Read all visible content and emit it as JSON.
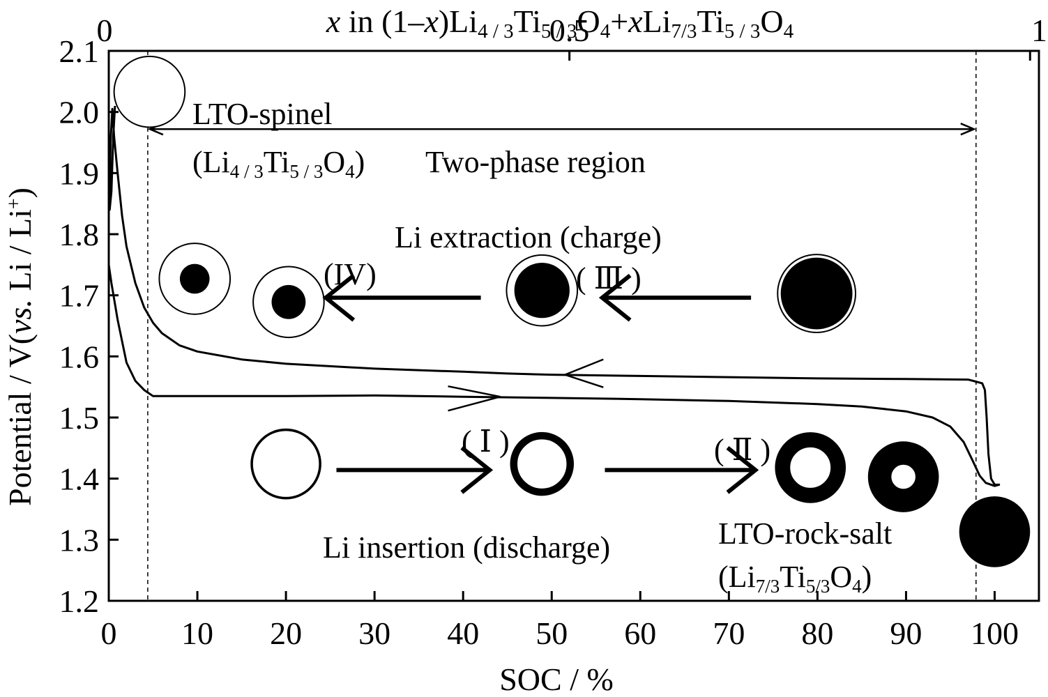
{
  "chart_data": {
    "type": "line",
    "xlabel": "SOC / %",
    "ylabel": "Potential / V(vs. Li / Li⁺)",
    "ylabel_parts": [
      "Potential / V(",
      "vs.",
      " Li / Li",
      "+",
      ")"
    ],
    "top_axis_title": {
      "parts": [
        {
          "t": "x",
          "style": "italic"
        },
        {
          "t": " in (1–",
          "style": "normal"
        },
        {
          "t": "x",
          "style": "italic"
        },
        {
          "t": ")Li",
          "style": "normal"
        },
        {
          "t": "4 / 3",
          "style": "sub"
        },
        {
          "t": "Ti",
          "style": "normal"
        },
        {
          "t": "5 / 3",
          "style": "sub"
        },
        {
          "t": "O",
          "style": "normal"
        },
        {
          "t": "4",
          "style": "sub"
        },
        {
          "t": "+",
          "style": "normal"
        },
        {
          "t": "x",
          "style": "italic"
        },
        {
          "t": "Li",
          "style": "normal"
        },
        {
          "t": "7/3",
          "style": "sub"
        },
        {
          "t": "Ti",
          "style": "normal"
        },
        {
          "t": "5 / 3",
          "style": "sub"
        },
        {
          "t": "O",
          "style": "normal"
        },
        {
          "t": "4",
          "style": "sub"
        }
      ]
    },
    "xlim": [
      0,
      105
    ],
    "ylim": [
      1.2,
      2.1
    ],
    "x_ticks": [
      0,
      10,
      20,
      30,
      40,
      50,
      60,
      70,
      80,
      90,
      100
    ],
    "x_tick_labels": [
      "0",
      "10",
      "20",
      "30",
      "40",
      "50",
      "60",
      "70",
      "80",
      "90",
      "100"
    ],
    "y_ticks": [
      1.2,
      1.3,
      1.4,
      1.5,
      1.6,
      1.7,
      1.8,
      1.9,
      2.0,
      2.1
    ],
    "y_tick_labels": [
      "1.2",
      "1.3",
      "1.4",
      "1.5",
      "1.6",
      "1.7",
      "1.8",
      "1.9",
      "2.0",
      "2.1"
    ],
    "top_ticks": [
      0,
      0.5,
      1
    ],
    "top_tick_labels": [
      "0",
      "0.5",
      "1"
    ],
    "top_tick_soc": [
      0,
      52,
      104
    ],
    "grid": false,
    "two_phase_region": {
      "x_start": 4.4,
      "x_end": 97.9
    },
    "series": [
      {
        "kind": "charge",
        "points": [
          [
            100.6,
            1.39
          ],
          [
            100,
            1.39
          ],
          [
            99.6,
            1.4
          ],
          [
            99.3,
            1.44
          ],
          [
            99.1,
            1.5
          ],
          [
            98.9,
            1.545
          ],
          [
            98.6,
            1.556
          ],
          [
            97,
            1.562
          ],
          [
            90,
            1.563
          ],
          [
            80,
            1.564
          ],
          [
            70,
            1.566
          ],
          [
            60,
            1.568
          ],
          [
            50,
            1.57
          ],
          [
            45,
            1.572
          ],
          [
            40,
            1.575
          ],
          [
            30,
            1.58
          ],
          [
            20,
            1.588
          ],
          [
            15,
            1.595
          ],
          [
            10,
            1.608
          ],
          [
            8,
            1.618
          ],
          [
            6,
            1.638
          ],
          [
            5,
            1.655
          ],
          [
            4,
            1.68
          ],
          [
            3,
            1.72
          ],
          [
            2,
            1.78
          ],
          [
            1.5,
            1.83
          ],
          [
            1.0,
            1.9
          ],
          [
            0.6,
            1.96
          ],
          [
            0.4,
            2.005
          ],
          [
            0.2,
            1.95
          ],
          [
            0.1,
            1.84
          ],
          [
            0.3,
            1.87
          ],
          [
            0.5,
            1.96
          ],
          [
            0.7,
            2.01
          ]
        ]
      },
      {
        "kind": "discharge",
        "points": [
          [
            0,
            1.75
          ],
          [
            0.3,
            1.72
          ],
          [
            1,
            1.66
          ],
          [
            2,
            1.59
          ],
          [
            3,
            1.56
          ],
          [
            4,
            1.545
          ],
          [
            5,
            1.535
          ],
          [
            10,
            1.535
          ],
          [
            20,
            1.535
          ],
          [
            30,
            1.536
          ],
          [
            40,
            1.534
          ],
          [
            50,
            1.532
          ],
          [
            60,
            1.53
          ],
          [
            70,
            1.527
          ],
          [
            80,
            1.522
          ],
          [
            85,
            1.518
          ],
          [
            90,
            1.51
          ],
          [
            93,
            1.5
          ],
          [
            95,
            1.485
          ],
          [
            96.5,
            1.46
          ],
          [
            97.5,
            1.43
          ],
          [
            98.3,
            1.405
          ],
          [
            99,
            1.393
          ],
          [
            100,
            1.388
          ],
          [
            100.5,
            1.39
          ]
        ]
      }
    ],
    "annotations": {
      "lto_spinel": {
        "line1": "LTO-spinel",
        "line2_parts": [
          "(Li",
          "4 / 3",
          "Ti",
          "5 / 3",
          "O",
          "4",
          ")"
        ]
      },
      "two_phase": "Two-phase region",
      "extraction": "Li extraction (charge)",
      "insertion": "Li insertion (discharge)",
      "lto_rocksalt": {
        "line1": "LTO-rock-salt",
        "line2_parts": [
          "(Li",
          "7/3",
          "Ti",
          "5/3",
          "O",
          "4",
          ")"
        ]
      },
      "stage_1": "( Ⅰ )",
      "stage_2": "( Ⅱ )",
      "stage_3": "( Ⅲ )",
      "stage_4": "(IV)"
    },
    "particles": [
      {
        "soc": 4.6,
        "v": 2.033,
        "r_soc": 4.0,
        "core": 0,
        "ring": 0.05,
        "note": "spinel"
      },
      {
        "soc": 9.7,
        "v": 1.727,
        "r_soc": 4.0,
        "core": 0.42,
        "ring": 0.05,
        "note": "IV"
      },
      {
        "soc": 20.3,
        "v": 1.689,
        "r_soc": 4.0,
        "core": 0.48,
        "ring": 0.05,
        "note": "IV"
      },
      {
        "soc": 48.9,
        "v": 1.708,
        "r_soc": 4.0,
        "core": 0.78,
        "ring": 0.05,
        "note": "III"
      },
      {
        "soc": 79.9,
        "v": 1.703,
        "r_soc": 4.4,
        "core": 0.92,
        "ring": 0.03,
        "note": "III"
      },
      {
        "soc": 20.0,
        "v": 1.424,
        "r_soc": 4.0,
        "ring": 0.07,
        "note": "I"
      },
      {
        "soc": 48.9,
        "v": 1.424,
        "r_soc": 3.6,
        "ring": 0.23,
        "note": "I"
      },
      {
        "soc": 79.2,
        "v": 1.418,
        "r_soc": 4.0,
        "ring": 0.43,
        "note": "II"
      },
      {
        "soc": 89.7,
        "v": 1.403,
        "r_soc": 4.0,
        "ring": 0.66,
        "note": "II"
      },
      {
        "soc": 100.0,
        "v": 1.313,
        "r_soc": 4.0,
        "ring": 1.0,
        "note": "rock-salt"
      }
    ],
    "arrows": [
      {
        "from": [
          42,
          1.696
        ],
        "to": [
          24.5,
          1.696
        ],
        "dir": "left",
        "note": "extraction IV"
      },
      {
        "from": [
          72.5,
          1.696
        ],
        "to": [
          55.7,
          1.696
        ],
        "dir": "left",
        "note": "extraction III"
      },
      {
        "from": [
          25.7,
          1.414
        ],
        "to": [
          43,
          1.414
        ],
        "dir": "right",
        "note": "insertion I"
      },
      {
        "from": [
          56,
          1.414
        ],
        "to": [
          73,
          1.414
        ],
        "dir": "right",
        "note": "insertion II"
      }
    ]
  }
}
